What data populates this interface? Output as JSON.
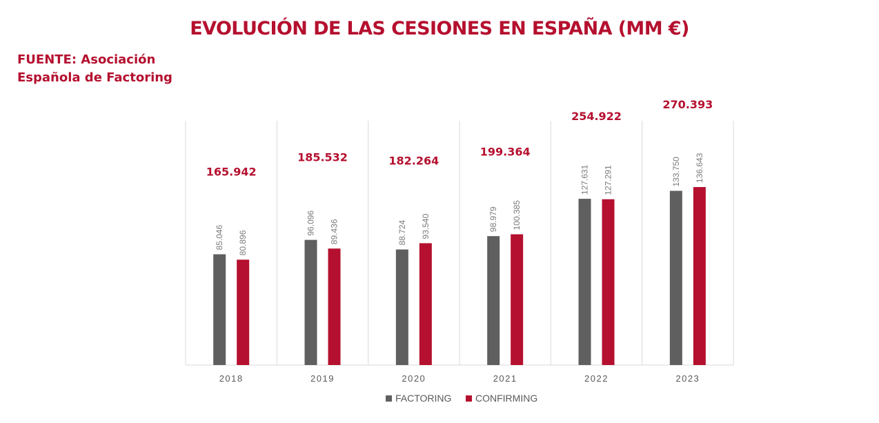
{
  "title": "EVOLUCIÓN DE LAS CESIONES EN ESPAÑA (MM €)",
  "source_line1": "FUENTE: Asociación",
  "source_line2": "Española de Factoring",
  "colors": {
    "accent": "#b5102f",
    "factoring": "#5f5f5f",
    "confirming": "#b5102f",
    "grid": "#d9d9d9"
  },
  "chart_data": {
    "type": "bar",
    "title": "EVOLUCIÓN DE LAS CESIONES EN ESPAÑA (MM €)",
    "categories": [
      "2018",
      "2019",
      "2020",
      "2021",
      "2022",
      "2023"
    ],
    "series": [
      {
        "name": "FACTORING",
        "values": [
          85046,
          96096,
          88724,
          98979,
          127631,
          133750
        ],
        "labels": [
          "85.046",
          "96.096",
          "88.724",
          "98.979",
          "127.631",
          "133.750"
        ]
      },
      {
        "name": "CONFIRMING",
        "values": [
          80896,
          89436,
          93540,
          100385,
          127291,
          136643
        ],
        "labels": [
          "80.896",
          "89.436",
          "93.540",
          "100.385",
          "127.291",
          "136.643"
        ]
      }
    ],
    "totals": [
      "165.942",
      "185.532",
      "182.264",
      "199.364",
      "254.922",
      "270.393"
    ],
    "ylim": [
      0,
      160000
    ],
    "grid": "vertical separators",
    "legend": "bottom-center"
  }
}
